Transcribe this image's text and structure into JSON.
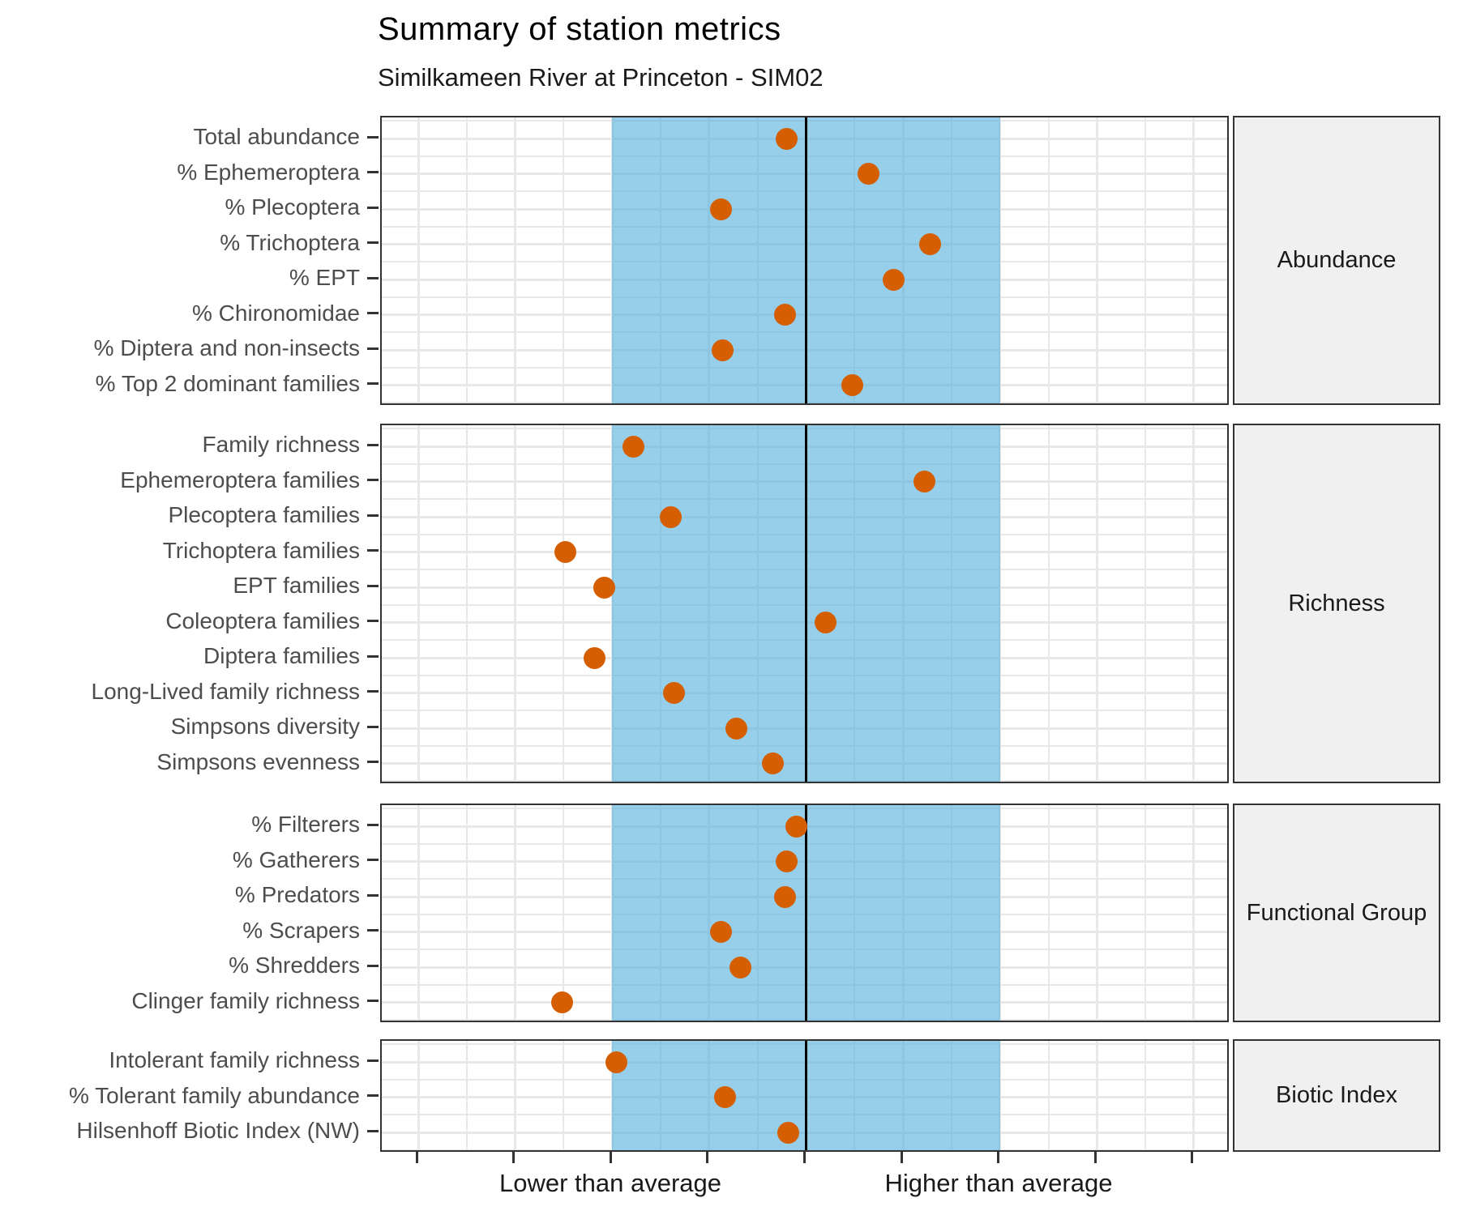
{
  "title": "Summary of station metrics",
  "subtitle": "Similkameen River at Princeton - SIM02",
  "x_axis": {
    "left_label": "Lower than average",
    "right_label": "Higher than average"
  },
  "chart_data": {
    "type": "scatter",
    "subtype": "faceted-horizontal-dot-plot",
    "title": "Summary of station metrics",
    "subtitle": "Similkameen River at Princeton - SIM02",
    "x_unit": "deviation from average (standardized, 0 = average)",
    "xlim": [
      -2.19,
      2.19
    ],
    "x_ticks": [
      -2,
      -1.5,
      -1,
      -0.5,
      0,
      0.5,
      1,
      1.5,
      2
    ],
    "x_tick_numeric_labels_shown": false,
    "x_axis_text": {
      "lower": "Lower than average",
      "lower_anchor": -1,
      "higher": "Higher than average",
      "higher_anchor": 1
    },
    "reference_line": 0,
    "reference_band": {
      "from": -1,
      "to": 1
    },
    "grid": true,
    "legend": "none",
    "panels": [
      {
        "facet": "Abundance",
        "metrics": [
          {
            "label": "Total abundance",
            "value": -0.1
          },
          {
            "label": "% Ephemeroptera",
            "value": 0.32
          },
          {
            "label": "% Plecoptera",
            "value": -0.44
          },
          {
            "label": "% Trichoptera",
            "value": 0.64
          },
          {
            "label": "% EPT",
            "value": 0.45
          },
          {
            "label": "% Chironomidae",
            "value": -0.11
          },
          {
            "label": "% Diptera and non-insects",
            "value": -0.43
          },
          {
            "label": "% Top 2 dominant families",
            "value": 0.24
          }
        ]
      },
      {
        "facet": "Richness",
        "metrics": [
          {
            "label": "Family richness",
            "value": -0.89
          },
          {
            "label": "Ephemeroptera families",
            "value": 0.61
          },
          {
            "label": "Plecoptera families",
            "value": -0.7
          },
          {
            "label": "Trichoptera families",
            "value": -1.24
          },
          {
            "label": "EPT families",
            "value": -1.04
          },
          {
            "label": "Coleoptera families",
            "value": 0.1
          },
          {
            "label": "Diptera families",
            "value": -1.09
          },
          {
            "label": "Long-Lived family richness",
            "value": -0.68
          },
          {
            "label": "Simpsons diversity",
            "value": -0.36
          },
          {
            "label": "Simpsons evenness",
            "value": -0.17
          }
        ]
      },
      {
        "facet": "Functional Group",
        "metrics": [
          {
            "label": "% Filterers",
            "value": -0.05
          },
          {
            "label": "% Gatherers",
            "value": -0.1
          },
          {
            "label": "% Predators",
            "value": -0.11
          },
          {
            "label": "% Scrapers",
            "value": -0.44
          },
          {
            "label": "% Shredders",
            "value": -0.34
          },
          {
            "label": "Clinger family richness",
            "value": -1.26
          }
        ]
      },
      {
        "facet": "Biotic Index",
        "metrics": [
          {
            "label": "Intolerant family richness",
            "value": -0.98
          },
          {
            "label": "% Tolerant family abundance",
            "value": -0.42
          },
          {
            "label": "Hilsenhoff Biotic Index (NW)",
            "value": -0.09
          }
        ]
      }
    ],
    "colors": {
      "point": "#D55E00",
      "band": "#9AD1EC",
      "reference_line": "#000000",
      "panel_border": "#333333",
      "strip_background": "#F0F0F0",
      "gridline": "#E8E8E8",
      "axis_text": "#4D4D4D"
    }
  }
}
